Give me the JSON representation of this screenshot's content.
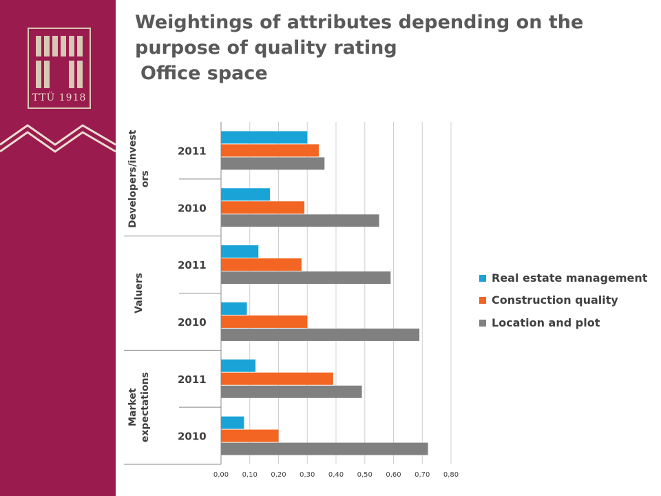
{
  "slide": {
    "title_line1": "Weightings of attributes depending on the",
    "title_line2": "purpose  of quality rating",
    "subtitle": "Office space",
    "logo_text": "TTÜ 1918"
  },
  "colors": {
    "sidebar": "#9a1b4e",
    "real_estate_management": "#1aa3d6",
    "construction_quality": "#f26522",
    "location_and_plot": "#808080"
  },
  "chart_data": {
    "type": "bar",
    "orientation": "horizontal",
    "groups": [
      {
        "label": "Developers/investors",
        "label_lines": [
          "Developers/invest",
          "ors"
        ],
        "years": [
          "2011",
          "2010"
        ]
      },
      {
        "label": "Valuers",
        "label_lines": [
          "Valuers"
        ],
        "years": [
          "2011",
          "2010"
        ]
      },
      {
        "label": "Market expectations",
        "label_lines": [
          "Market",
          "expectations"
        ],
        "years": [
          "2011",
          "2010"
        ]
      }
    ],
    "categories": [
      "Developers/investors 2011",
      "Developers/investors 2010",
      "Valuers 2011",
      "Valuers 2010",
      "Market expectations 2011",
      "Market expectations 2010"
    ],
    "series": [
      {
        "name": "Real estate management",
        "values": [
          0.3,
          0.17,
          0.13,
          0.09,
          0.12,
          0.08
        ]
      },
      {
        "name": "Construction quality",
        "values": [
          0.34,
          0.29,
          0.28,
          0.3,
          0.39,
          0.2
        ]
      },
      {
        "name": "Location and plot",
        "values": [
          0.36,
          0.55,
          0.59,
          0.69,
          0.49,
          0.72
        ]
      }
    ],
    "xlim": [
      0,
      0.8
    ],
    "xticks": [
      "0,00",
      "0,10",
      "0,20",
      "0,30",
      "0,40",
      "0,50",
      "0,60",
      "0,70",
      "0,80"
    ],
    "grid": true,
    "legend_position": "right"
  }
}
